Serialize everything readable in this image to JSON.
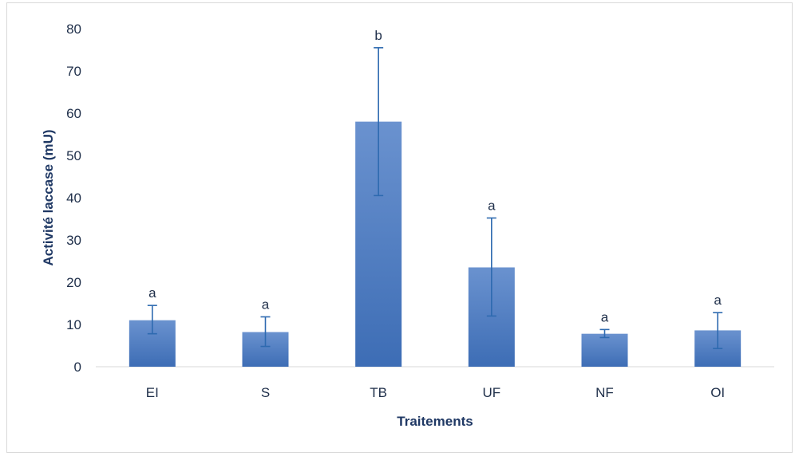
{
  "chart_data": {
    "type": "bar",
    "categories": [
      "EI",
      "S",
      "TB",
      "UF",
      "NF",
      "OI"
    ],
    "values": [
      11,
      8.2,
      58,
      23.5,
      7.8,
      8.6
    ],
    "error_low": [
      7.8,
      4.8,
      40.5,
      12,
      6.9,
      4.3
    ],
    "error_high": [
      14.5,
      11.8,
      75.5,
      35.2,
      8.8,
      12.8
    ],
    "significance_labels": [
      "a",
      "a",
      "b",
      "a",
      "a",
      "a"
    ],
    "xlabel": "Traitements",
    "ylabel": "Activité laccase (mU)",
    "ylim": [
      0,
      80
    ],
    "yticks": [
      0,
      10,
      20,
      30,
      40,
      50,
      60,
      70,
      80
    ],
    "ytick_labels": [
      "0",
      "10",
      "20",
      "30",
      "40",
      "50",
      "60",
      "70",
      "80"
    ],
    "grid": false,
    "bar_color": "#4a78be",
    "error_color": "#2e6ab0",
    "text_color": "#1f2f4a",
    "axis_title_color": "#1f3864"
  }
}
